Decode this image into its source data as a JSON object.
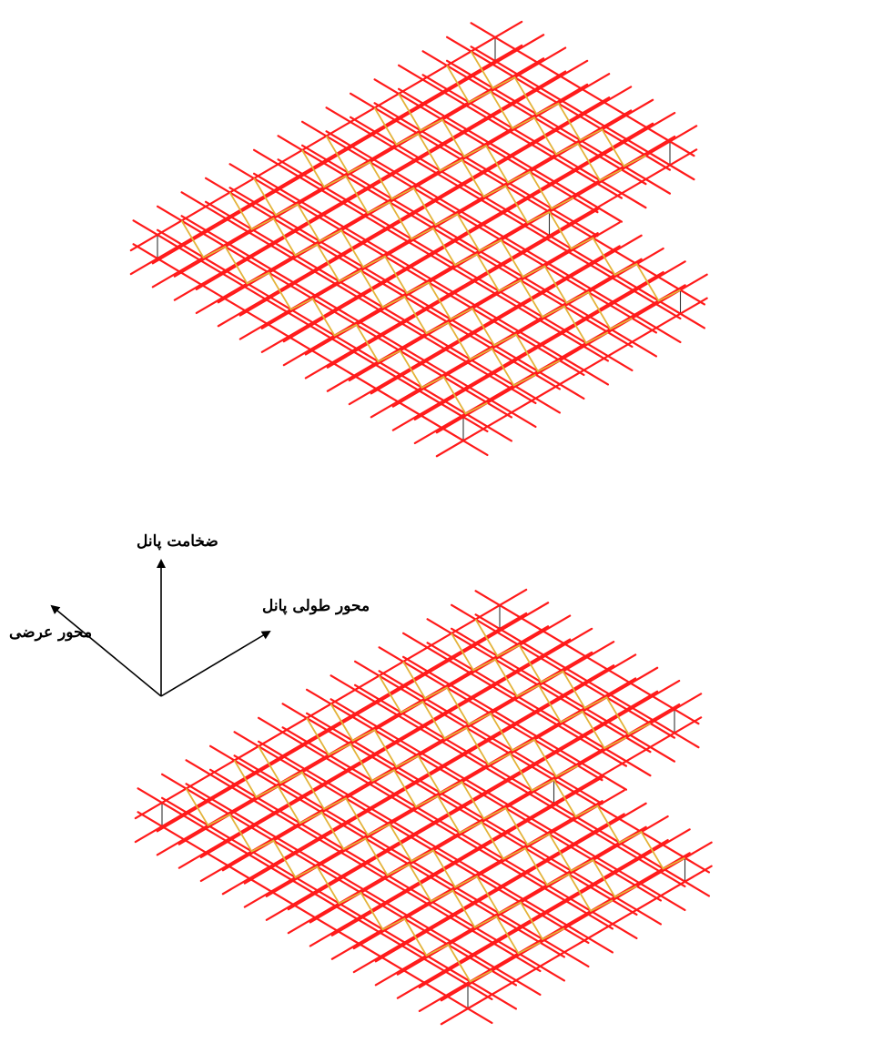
{
  "figure": {
    "axis_labels": {
      "thickness": "ضخامت پانل",
      "longitudinal": "محور طولی پانل",
      "transverse": "محور عرضی"
    },
    "colors": {
      "mesh_bars": "#ff1a1a",
      "truss_wires": "#e3b33a",
      "panel_outline": "#333333",
      "axis_arrows": "#000000",
      "background": "#ffffff"
    },
    "panels": [
      {
        "view": "top-isometric",
        "shape": "L-shaped slab with notch",
        "mesh": "orthogonal steel wire grid",
        "diagonal_truss_rows": 9
      },
      {
        "view": "bottom-isometric",
        "shape": "L-shaped slab with notch",
        "mesh": "orthogonal steel wire grid",
        "diagonal_truss_rows": 9
      }
    ]
  }
}
